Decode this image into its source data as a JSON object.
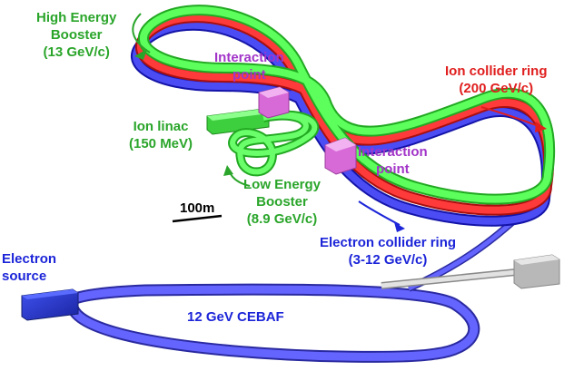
{
  "labels": {
    "high_energy_booster": [
      "High Energy",
      "Booster",
      "(13 GeV/c)"
    ],
    "interaction_point_1": [
      "Interaction",
      "point"
    ],
    "ion_collider_ring": [
      "Ion collider ring",
      "(200 GeV/c)"
    ],
    "ion_linac": [
      "Ion linac",
      "(150 MeV)"
    ],
    "interaction_point_2": [
      "Interaction",
      "point"
    ],
    "low_energy_booster": [
      "Low Energy",
      "Booster",
      "(8.9 GeV/c)"
    ],
    "scale_bar": "100m",
    "electron_collider_ring": [
      "Electron collider ring",
      "(3-12 GeV/c)"
    ],
    "electron_source": [
      "Electron",
      "source"
    ],
    "cebaf": "12 GeV CEBAF"
  },
  "colors": {
    "ion_ring": "#e01e1e",
    "electron_ring": "#3b3bf0",
    "booster_ring": "#4cff4c",
    "linac": "#4cff4c",
    "cebaf_track": "#5a5aff",
    "interaction_point": "#e884e8",
    "electron_source_block": "#2b3bd8",
    "dump_block": "#d0d0d0",
    "green_text": "#2aa52a",
    "red_text": "#e01e1e",
    "blue_text": "#1c25d8",
    "purple_text": "#a234c8"
  }
}
